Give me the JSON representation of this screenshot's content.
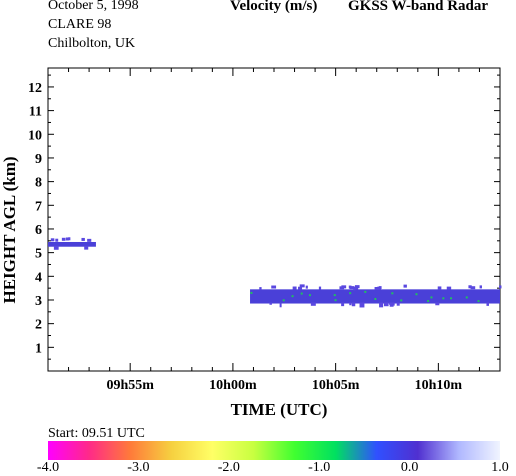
{
  "header": {
    "date": "October 5, 1998",
    "campaign": "CLARE 98",
    "site": "Chilbolton, UK",
    "quantity": "Velocity (m/s)",
    "instrument": "GKSS  W-band Radar"
  },
  "start_label": "Start: 09.51 UTC",
  "chart_data": {
    "type": "heatmap",
    "title": "Velocity (m/s)",
    "xlabel": "TIME (UTC)",
    "ylabel": "HEIGHT AGL (km)",
    "xlim": [
      "09:51",
      "10:13"
    ],
    "ylim": [
      0,
      12.8
    ],
    "x_ticks": [
      {
        "time": "09:55",
        "label": "09h55m"
      },
      {
        "time": "10:00",
        "label": "10h00m"
      },
      {
        "time": "10:05",
        "label": "10h05m"
      },
      {
        "time": "10:10",
        "label": "10h10m"
      }
    ],
    "y_ticks": [
      1,
      2,
      3,
      4,
      5,
      6,
      7,
      8,
      9,
      10,
      11,
      12
    ],
    "grid": false,
    "echo_layers": [
      {
        "start": "09:51",
        "end": "09:53:20",
        "base_km": 5.25,
        "top_km": 5.45,
        "velocity_ms": 0.0
      },
      {
        "start": "10:00:50",
        "end": "10:13",
        "base_km": 2.85,
        "top_km": 3.45,
        "velocity_ms": 0.0
      }
    ],
    "colorbar": {
      "range": [
        -4.0,
        1.0
      ],
      "ticks": [
        "-4.0",
        "-3.0",
        "-2.0",
        "-1.0",
        "0.0",
        "1.0"
      ],
      "colors": [
        "#ff00ff",
        "#ff2a88",
        "#ff7a3a",
        "#f6d040",
        "#ffff66",
        "#c8ff40",
        "#40ff30",
        "#00e060",
        "#3050ff",
        "#5030d0",
        "#b0b8ff",
        "#f0f4ff"
      ]
    }
  }
}
